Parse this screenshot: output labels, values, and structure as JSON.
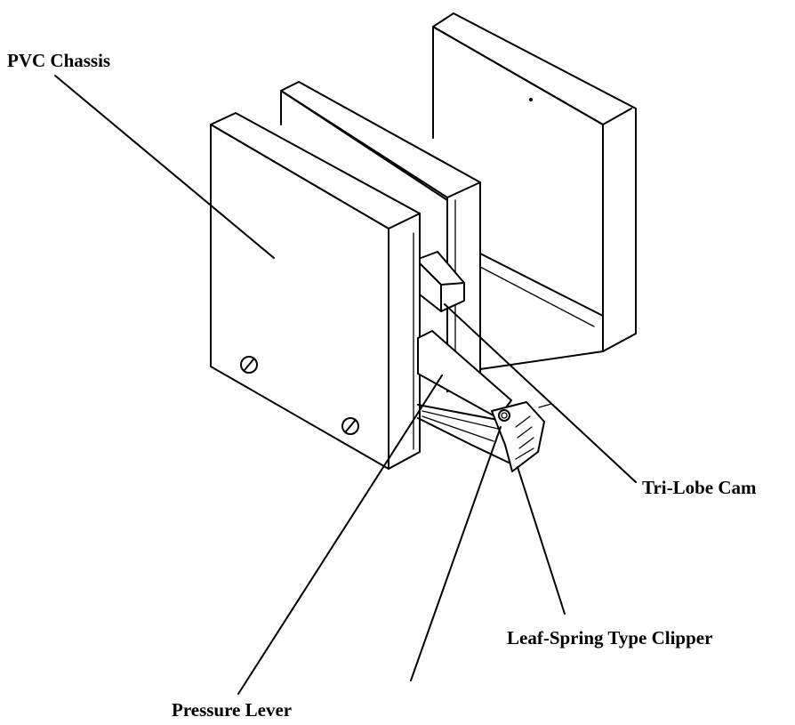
{
  "labels": {
    "chassis": "PVC Chassis",
    "cam": "Tri-Lobe Cam",
    "clipper": "Leaf-Spring Type Clipper",
    "lever": "Pressure Lever"
  },
  "colors": {
    "ink": "#000000",
    "paper": "#ffffff"
  }
}
